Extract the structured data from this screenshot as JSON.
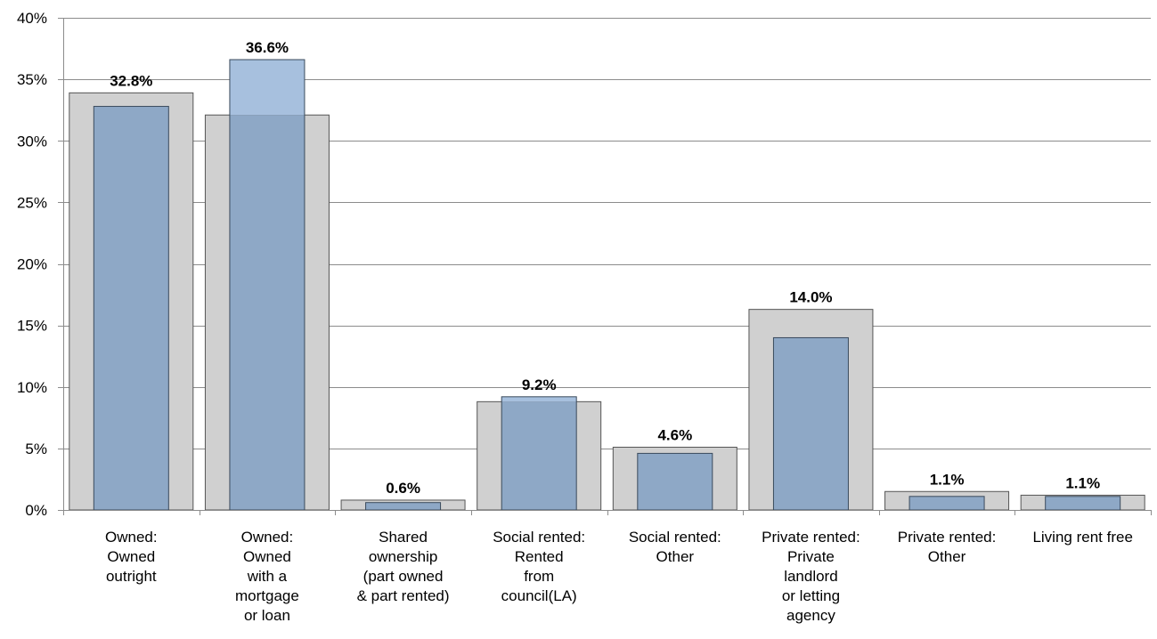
{
  "chart_data": {
    "type": "bar",
    "title": "",
    "xlabel": "",
    "ylabel": "",
    "ylim": [
      0,
      40
    ],
    "y_ticks": [
      "0%",
      "5%",
      "10%",
      "15%",
      "20%",
      "25%",
      "30%",
      "35%",
      "40%"
    ],
    "y_tick_values": [
      0,
      5,
      10,
      15,
      20,
      25,
      30,
      35,
      40
    ],
    "grid": true,
    "legend": "none",
    "categories": [
      [
        "Owned:",
        "Owned",
        "outright"
      ],
      [
        "Owned:",
        "Owned",
        "with a",
        "mortgage",
        "or loan"
      ],
      [
        "Shared",
        "ownership",
        "(part owned",
        "& part rented)"
      ],
      [
        "Social rented:",
        "Rented",
        "from",
        "council(LA)"
      ],
      [
        "Social rented:",
        "Other"
      ],
      [
        "Private rented:",
        "Private",
        "landlord",
        "or letting",
        "agency"
      ],
      [
        "Private rented:",
        "Other"
      ],
      [
        "Living rent free"
      ]
    ],
    "series": [
      {
        "role": "background",
        "color": "#d0d0d0",
        "values": [
          33.9,
          32.1,
          0.8,
          8.8,
          5.1,
          16.3,
          1.5,
          1.2
        ]
      },
      {
        "role": "foreground",
        "color": "#8ea8c6",
        "values": [
          32.8,
          36.6,
          0.6,
          9.2,
          4.6,
          14.0,
          1.1,
          1.1
        ],
        "data_labels": [
          "32.8%",
          "36.6%",
          "0.6%",
          "9.2%",
          "4.6%",
          "14.0%",
          "1.1%",
          "1.1%"
        ]
      }
    ],
    "overlap_color": "#8ea8c6",
    "exceed_color": "#a7c0de"
  }
}
